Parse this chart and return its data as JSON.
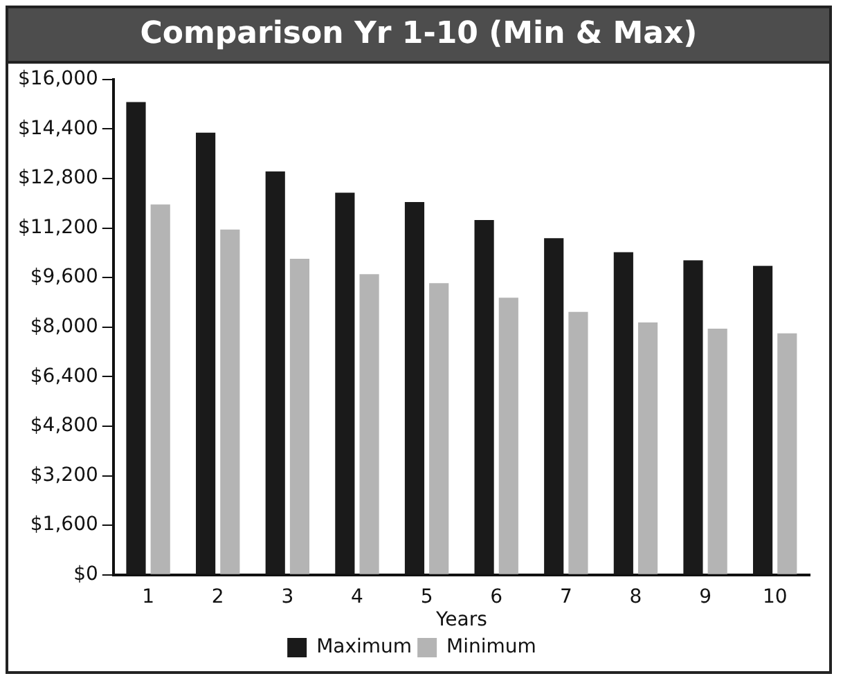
{
  "chart_data": {
    "type": "bar",
    "title": "Comparison Yr 1-10 (Min & Max)",
    "xlabel": "Years",
    "categories": [
      "1",
      "2",
      "3",
      "4",
      "5",
      "6",
      "7",
      "8",
      "9",
      "10"
    ],
    "series": [
      {
        "name": "Maximum",
        "color": "#1a1a1a",
        "values": [
          15270,
          14280,
          13030,
          12340,
          12040,
          11460,
          10870,
          10420,
          10160,
          9980
        ]
      },
      {
        "name": "Minimum",
        "color": "#b4b4b4",
        "values": [
          11960,
          11150,
          10210,
          9710,
          9420,
          8950,
          8490,
          8150,
          7950,
          7800
        ]
      }
    ],
    "ylim": [
      0,
      16000
    ],
    "yticks": [
      {
        "value": 0,
        "label": "$0"
      },
      {
        "value": 1600,
        "label": "$1,600"
      },
      {
        "value": 3200,
        "label": "$3,200"
      },
      {
        "value": 4800,
        "label": "$4,800"
      },
      {
        "value": 6400,
        "label": "$6,400"
      },
      {
        "value": 8000,
        "label": "$8,000"
      },
      {
        "value": 9600,
        "label": "$9,600"
      },
      {
        "value": 11200,
        "label": "$11,200"
      },
      {
        "value": 12800,
        "label": "$12,800"
      },
      {
        "value": 14400,
        "label": "$14,400"
      },
      {
        "value": 16000,
        "label": "$16,000"
      }
    ],
    "grid": false,
    "legend": "bottom"
  }
}
